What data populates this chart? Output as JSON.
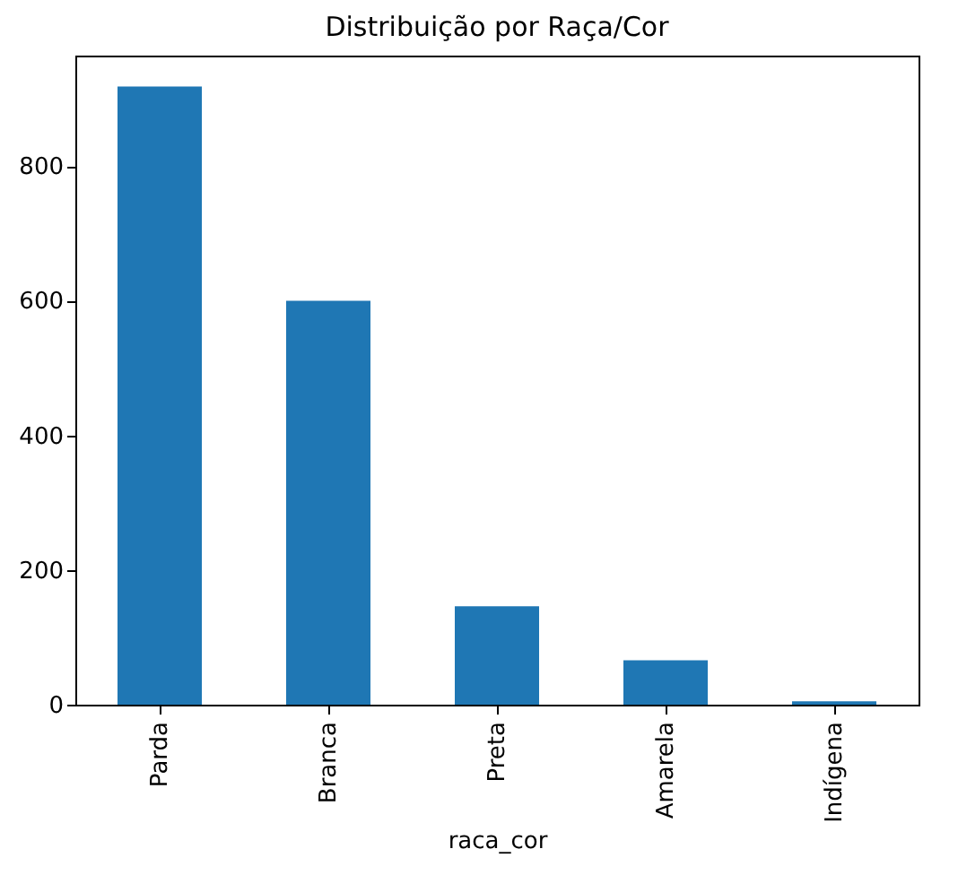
{
  "chart_data": {
    "type": "bar",
    "title": "Distribuição por Raça/Cor",
    "xlabel": "raca_cor",
    "categories": [
      "Parda",
      "Branca",
      "Preta",
      "Amarela",
      "Indígena"
    ],
    "values": [
      918,
      600,
      146,
      66,
      5
    ],
    "color": "#1f77b4",
    "ylim": [
      0,
      964
    ],
    "yticks": [
      0,
      200,
      400,
      600,
      800
    ],
    "grid": false
  }
}
